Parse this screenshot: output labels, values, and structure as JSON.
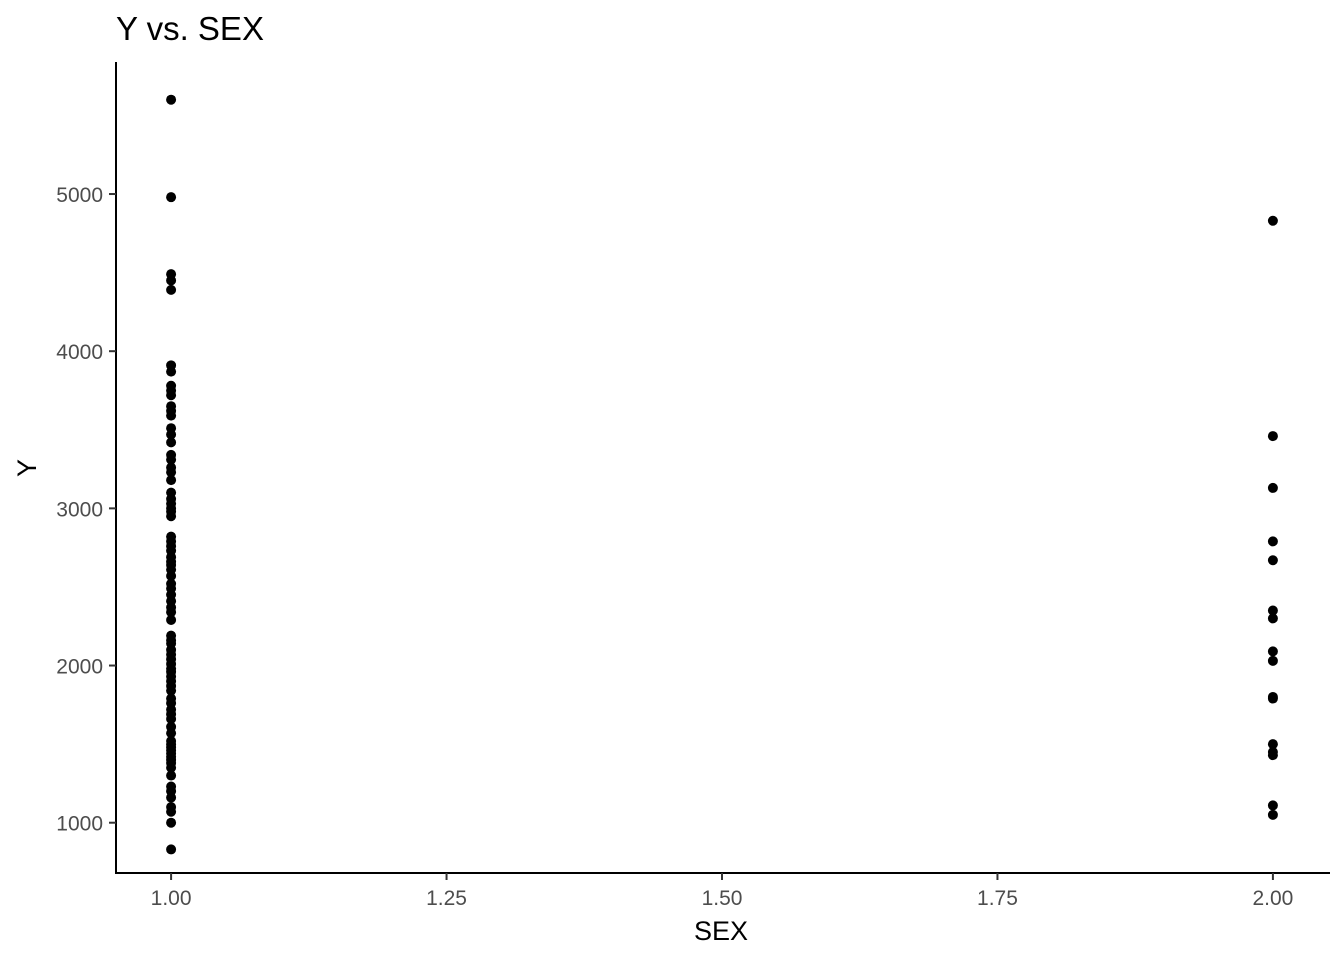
{
  "chart_data": {
    "type": "scatter",
    "title": "Y vs. SEX",
    "xlabel": "SEX",
    "ylabel": "Y",
    "xlim": [
      0.95,
      2.05
    ],
    "ylim": [
      680,
      5840
    ],
    "xticks": [
      1.0,
      1.25,
      1.5,
      1.75,
      2.0
    ],
    "xtick_labels": [
      "1.00",
      "1.25",
      "1.50",
      "1.75",
      "2.00"
    ],
    "yticks": [
      1000,
      2000,
      3000,
      4000,
      5000
    ],
    "ytick_labels": [
      "1000",
      "2000",
      "3000",
      "4000",
      "5000"
    ],
    "grid": false,
    "point_color": "#000000",
    "series": [
      {
        "x": 1.0,
        "values": [
          5600,
          4980,
          4490,
          4450,
          4390,
          3910,
          3870,
          3780,
          3750,
          3720,
          3650,
          3620,
          3590,
          3510,
          3470,
          3420,
          3340,
          3310,
          3260,
          3230,
          3180,
          3100,
          3060,
          3030,
          3000,
          2980,
          2950,
          2820,
          2790,
          2760,
          2730,
          2690,
          2660,
          2640,
          2610,
          2570,
          2520,
          2490,
          2450,
          2410,
          2370,
          2340,
          2290,
          2190,
          2160,
          2140,
          2100,
          2070,
          2040,
          2010,
          1980,
          1960,
          1930,
          1900,
          1870,
          1840,
          1790,
          1760,
          1720,
          1690,
          1660,
          1610,
          1570,
          1520,
          1500,
          1480,
          1460,
          1440,
          1420,
          1400,
          1380,
          1350,
          1300,
          1230,
          1200,
          1160,
          1100,
          1070,
          1000,
          830
        ]
      },
      {
        "x": 2.0,
        "values": [
          4830,
          3460,
          3130,
          2790,
          2670,
          2350,
          2300,
          2090,
          2030,
          1800,
          1790,
          1500,
          1450,
          1430,
          1110,
          1050
        ]
      }
    ]
  }
}
